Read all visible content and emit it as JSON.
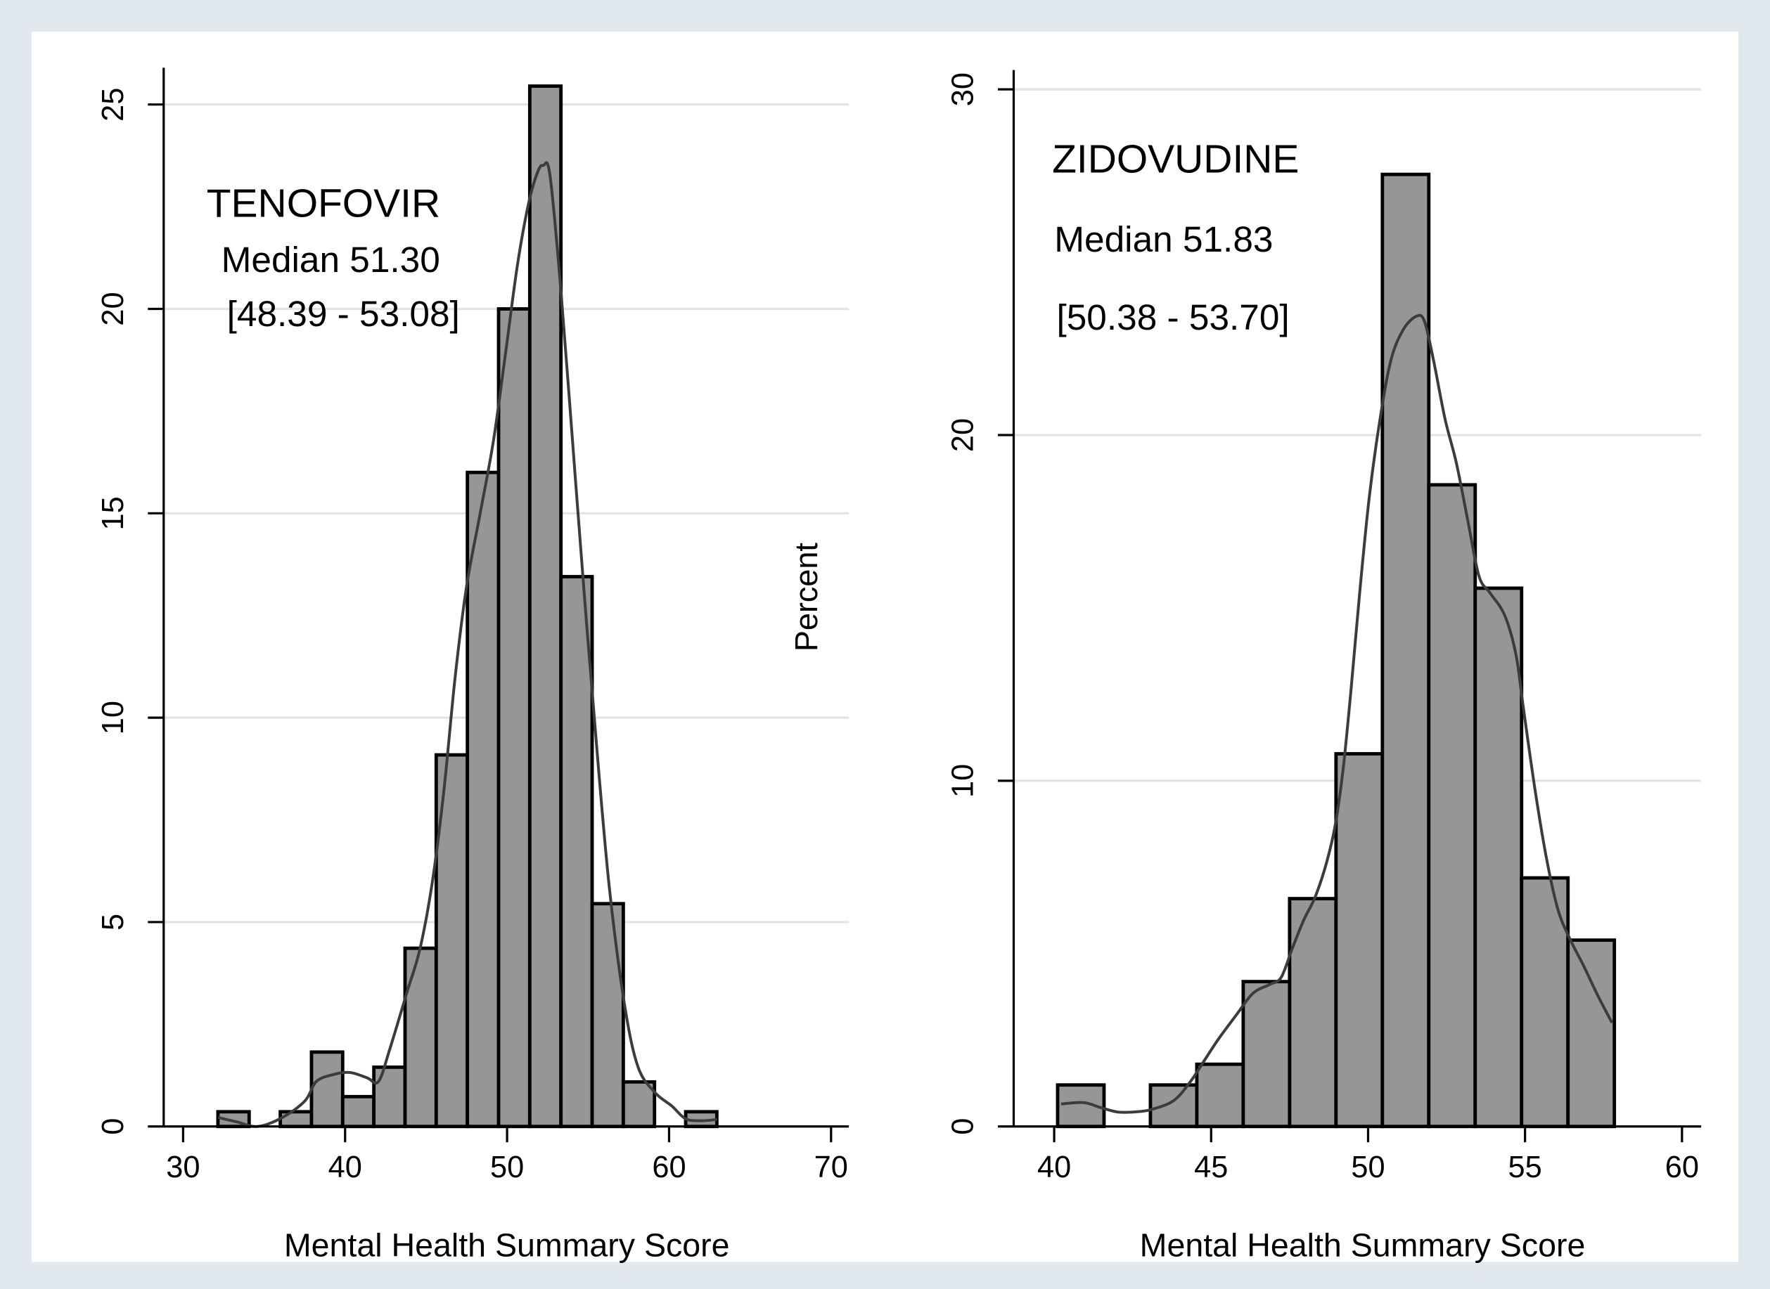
{
  "figure": {
    "ylabel": "Percent",
    "colors": {
      "outer_background": "#e2e9ee",
      "panel_background": "#ffffff",
      "bar_fill": "#969696",
      "bar_stroke": "#000000",
      "density_line": "#3c3c3c",
      "grid": "#e3e3e3",
      "axis": "#000000"
    }
  },
  "chart_data": [
    {
      "type": "bar",
      "title": "TENOFOVIR",
      "annotations": [
        "Median 51.30",
        "[48.39 - 53.08]"
      ],
      "xlabel": "Mental Health Summary Score",
      "xlim": [
        28.8,
        71.1
      ],
      "ylim": [
        0,
        25.9
      ],
      "xticks": [
        30,
        40,
        50,
        60,
        70
      ],
      "yticks": [
        0,
        5,
        10,
        15,
        20,
        25
      ],
      "grid": true,
      "bin_start": 32.15,
      "bin_width": 1.925,
      "values": [
        0.36,
        0,
        0.36,
        1.82,
        0.73,
        1.45,
        4.36,
        9.09,
        16.0,
        20.0,
        25.45,
        13.45,
        5.45,
        1.09,
        0,
        0.36
      ],
      "density": {
        "x": [
          32.16,
          33.34,
          34.6,
          36.13,
          37.53,
          38.22,
          39.27,
          40.31,
          41.36,
          42.06,
          42.75,
          43.8,
          44.63,
          45.4,
          46.1,
          46.79,
          47.49,
          48.33,
          49.16,
          49.93,
          50.63,
          51.32,
          51.88,
          52.23,
          52.65,
          53.34,
          54.25,
          54.95,
          55.64,
          56.34,
          57.25,
          58.08,
          59.13,
          60.17,
          61.01,
          61.92,
          62.96
        ],
        "y": [
          0.22,
          0.11,
          0.0,
          0.22,
          0.63,
          1.1,
          1.27,
          1.32,
          1.19,
          1.1,
          1.88,
          3.26,
          4.36,
          6.02,
          8.22,
          10.98,
          13.19,
          14.98,
          16.78,
          18.99,
          21.05,
          22.57,
          23.34,
          23.51,
          23.26,
          20.36,
          15.67,
          12.09,
          8.77,
          5.74,
          2.98,
          1.46,
          0.83,
          0.5,
          0.19,
          0.14,
          0.17
        ]
      }
    },
    {
      "type": "bar",
      "title": "ZIDOVUDINE",
      "annotations": [
        "Median 51.83",
        "[50.38 - 53.70]"
      ],
      "xlabel": "Mental Health Summary Score",
      "xlim": [
        38.71,
        60.61
      ],
      "ylim": [
        0,
        30.56
      ],
      "xticks": [
        40,
        45,
        50,
        55,
        60
      ],
      "yticks": [
        0,
        10,
        20,
        30
      ],
      "grid": true,
      "bin_start": 40.11,
      "bin_width": 1.478,
      "values": [
        1.2,
        0,
        1.2,
        1.8,
        4.19,
        6.59,
        10.78,
        27.54,
        18.56,
        15.57,
        7.19,
        5.39
      ],
      "density": {
        "x": [
          40.22,
          40.94,
          41.47,
          42.01,
          42.55,
          43.09,
          43.81,
          44.35,
          44.82,
          45.25,
          45.79,
          46.33,
          46.87,
          47.23,
          47.59,
          47.95,
          48.31,
          48.67,
          48.96,
          49.21,
          49.46,
          49.75,
          50.04,
          50.36,
          50.72,
          51.12,
          51.55,
          51.8,
          52.09,
          52.45,
          52.81,
          53.17,
          53.53,
          53.88,
          54.35,
          54.71,
          54.96,
          55.32,
          55.68,
          56.04,
          56.4,
          56.87,
          57.3,
          57.77
        ],
        "y": [
          0.65,
          0.69,
          0.55,
          0.42,
          0.42,
          0.49,
          0.75,
          1.31,
          1.96,
          2.55,
          3.21,
          3.85,
          4.11,
          4.31,
          5.16,
          5.97,
          6.63,
          7.61,
          8.75,
          10.38,
          12.67,
          15.61,
          18.22,
          20.34,
          22.14,
          23.05,
          23.44,
          23.28,
          22.14,
          20.47,
          19.2,
          17.56,
          15.93,
          15.44,
          14.79,
          13.65,
          12.02,
          9.73,
          7.77,
          6.3,
          5.48,
          4.64,
          3.82,
          3.0
        ]
      }
    }
  ]
}
